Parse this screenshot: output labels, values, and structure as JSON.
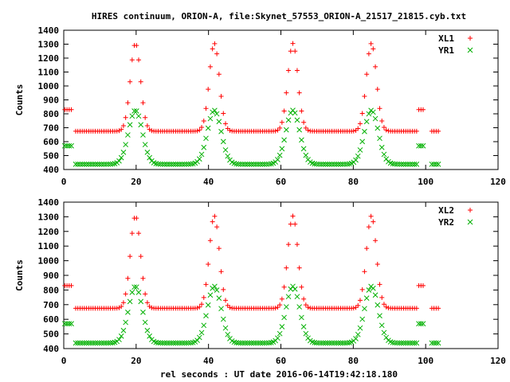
{
  "title": "HIRES continuum, ORION-A, file:Skynet_57553_ORION-A_21517_21815.cyb.txt",
  "xlabel": "rel seconds : UT date 2016-06-14T19:42:18.180",
  "colors": {
    "red": "#ff0000",
    "green": "#00b000",
    "axis": "#000000"
  },
  "chart_data": [
    {
      "type": "scatter",
      "ylabel": "Counts",
      "xlim": [
        0,
        120
      ],
      "ylim": [
        400,
        1400
      ],
      "xticks": [
        0,
        20,
        40,
        60,
        80,
        100,
        120
      ],
      "yticks": [
        400,
        500,
        600,
        700,
        800,
        900,
        1000,
        1100,
        1200,
        1300,
        1400
      ],
      "legend_placement": "top-right",
      "peak_centers": [
        19.8,
        41.6,
        63.3,
        85.0
      ],
      "series": [
        {
          "name": "XL1",
          "marker": "plus",
          "color": "#ff0000",
          "baseline": 675,
          "peak": 1305,
          "peak_width_sd": 1.4,
          "cal_on_levels": [
            830,
            830
          ],
          "cal_on_x": [
            [
              0.3,
              2.5
            ],
            [
              97.5,
              99.6
            ]
          ]
        },
        {
          "name": "YR1",
          "marker": "cross",
          "color": "#00b000",
          "baseline": 438,
          "peak": 825,
          "peak_width_sd": 1.9,
          "cal_on_levels": [
            570,
            570
          ],
          "cal_on_x": [
            [
              0.3,
              2.5
            ],
            [
              97.5,
              99.6
            ]
          ]
        }
      ]
    },
    {
      "type": "scatter",
      "ylabel": "Counts",
      "xlim": [
        0,
        120
      ],
      "ylim": [
        400,
        1400
      ],
      "xticks": [
        0,
        20,
        40,
        60,
        80,
        100,
        120
      ],
      "yticks": [
        400,
        500,
        600,
        700,
        800,
        900,
        1000,
        1100,
        1200,
        1300,
        1400
      ],
      "legend_placement": "top-right",
      "peak_centers": [
        19.8,
        41.6,
        63.3,
        85.0
      ],
      "series": [
        {
          "name": "XL2",
          "marker": "plus",
          "color": "#ff0000",
          "baseline": 675,
          "peak": 1305,
          "peak_width_sd": 1.4,
          "cal_on_levels": [
            830,
            830
          ],
          "cal_on_x": [
            [
              0.3,
              2.5
            ],
            [
              97.5,
              99.6
            ]
          ]
        },
        {
          "name": "YR2",
          "marker": "cross",
          "color": "#00b000",
          "baseline": 438,
          "peak": 825,
          "peak_width_sd": 1.9,
          "cal_on_levels": [
            570,
            570
          ],
          "cal_on_x": [
            [
              0.3,
              2.5
            ],
            [
              97.5,
              99.6
            ]
          ]
        }
      ]
    }
  ]
}
